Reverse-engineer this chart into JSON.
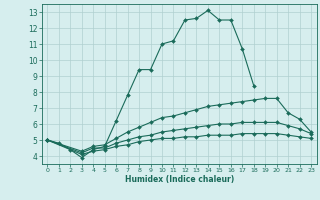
{
  "xlabel": "Humidex (Indice chaleur)",
  "ylabel": "",
  "bg_color": "#d6eeee",
  "grid_color": "#b0d0d0",
  "line_color": "#1a6b5a",
  "xlim": [
    -0.5,
    23.5
  ],
  "ylim": [
    3.5,
    13.5
  ],
  "xticks": [
    0,
    1,
    2,
    3,
    4,
    5,
    6,
    7,
    8,
    9,
    10,
    11,
    12,
    13,
    14,
    15,
    16,
    17,
    18,
    19,
    20,
    21,
    22,
    23
  ],
  "yticks": [
    4,
    5,
    6,
    7,
    8,
    9,
    10,
    11,
    12,
    13
  ],
  "lines": [
    {
      "x": [
        0,
        1,
        2,
        3,
        4,
        5,
        6,
        7,
        8,
        9,
        10,
        11,
        12,
        13,
        14,
        15,
        16,
        17,
        18
      ],
      "y": [
        5.0,
        4.8,
        4.4,
        3.9,
        4.4,
        4.6,
        6.2,
        7.8,
        9.4,
        9.4,
        11.0,
        11.2,
        12.5,
        12.6,
        13.1,
        12.5,
        12.5,
        10.7,
        8.4
      ]
    },
    {
      "x": [
        0,
        3,
        4,
        5,
        6,
        7,
        8,
        9,
        10,
        11,
        12,
        13,
        14,
        15,
        16,
        17,
        18,
        19,
        20,
        21,
        22,
        23
      ],
      "y": [
        5.0,
        4.3,
        4.6,
        4.7,
        5.1,
        5.5,
        5.8,
        6.1,
        6.4,
        6.5,
        6.7,
        6.9,
        7.1,
        7.2,
        7.3,
        7.4,
        7.5,
        7.6,
        7.6,
        6.7,
        6.3,
        5.5
      ]
    },
    {
      "x": [
        0,
        3,
        4,
        5,
        6,
        7,
        8,
        9,
        10,
        11,
        12,
        13,
        14,
        15,
        16,
        17,
        18,
        19,
        20,
        21,
        22,
        23
      ],
      "y": [
        5.0,
        4.2,
        4.5,
        4.5,
        4.8,
        5.0,
        5.2,
        5.3,
        5.5,
        5.6,
        5.7,
        5.8,
        5.9,
        6.0,
        6.0,
        6.1,
        6.1,
        6.1,
        6.1,
        5.9,
        5.7,
        5.4
      ]
    },
    {
      "x": [
        0,
        3,
        4,
        5,
        6,
        7,
        8,
        9,
        10,
        11,
        12,
        13,
        14,
        15,
        16,
        17,
        18,
        19,
        20,
        21,
        22,
        23
      ],
      "y": [
        5.0,
        4.1,
        4.3,
        4.4,
        4.6,
        4.7,
        4.9,
        5.0,
        5.1,
        5.1,
        5.2,
        5.2,
        5.3,
        5.3,
        5.3,
        5.4,
        5.4,
        5.4,
        5.4,
        5.3,
        5.2,
        5.1
      ]
    }
  ]
}
